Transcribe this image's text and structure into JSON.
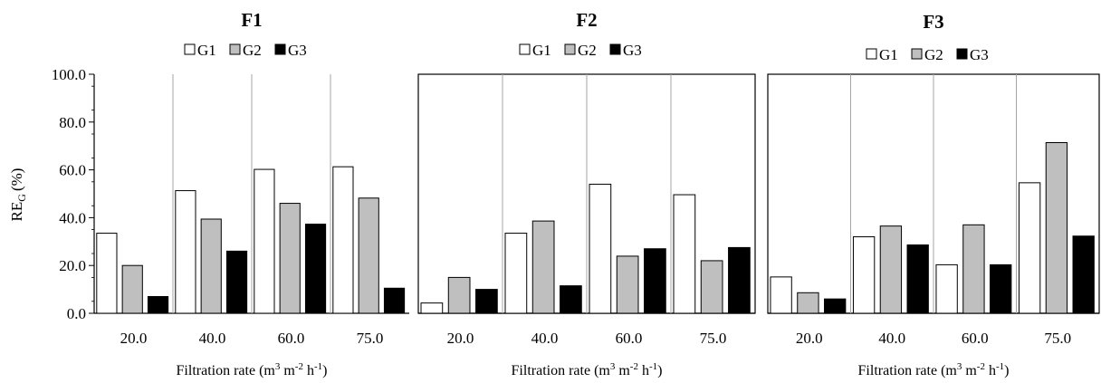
{
  "legend_labels": [
    "G1",
    "G2",
    "G3"
  ],
  "colors": {
    "G1": "#ffffff",
    "G2": "#bfbfbf",
    "G3": "#000000",
    "stroke": "#000000",
    "separator": "#a6a6a6"
  },
  "y_axis": {
    "label_main": "RE",
    "label_sub": "G",
    "label_unit": "(%)",
    "ticks": [
      "100.0",
      "80.0",
      "60.0",
      "40.0",
      "20.0",
      "0.0"
    ]
  },
  "x_axis": {
    "label_main": "Filtration  rate (m",
    "sup1": "3",
    "mid1": " m",
    "sup2": "-2",
    "mid2": " h",
    "sup3": "-1",
    "end": ")"
  },
  "chart_data": [
    {
      "type": "bar",
      "title": "F1",
      "categories": [
        "20.0",
        "40.0",
        "60.0",
        "75.0"
      ],
      "series": [
        {
          "name": "G1",
          "values": [
            33.5,
            51.3,
            60.2,
            61.3
          ]
        },
        {
          "name": "G2",
          "values": [
            20.0,
            39.4,
            46.0,
            48.2
          ]
        },
        {
          "name": "G3",
          "values": [
            7.0,
            26.0,
            37.3,
            10.5
          ]
        }
      ],
      "ylim": [
        0,
        100
      ],
      "grid": false,
      "legend": "top"
    },
    {
      "type": "bar",
      "title": "F2",
      "categories": [
        "20.0",
        "40.0",
        "60.0",
        "75.0"
      ],
      "series": [
        {
          "name": "G1",
          "values": [
            4.3,
            33.5,
            54.0,
            49.6
          ]
        },
        {
          "name": "G2",
          "values": [
            15.0,
            38.6,
            23.9,
            22.0
          ]
        },
        {
          "name": "G3",
          "values": [
            10.0,
            11.5,
            27.0,
            27.5
          ]
        }
      ],
      "ylim": [
        0,
        100
      ],
      "grid": false,
      "legend": "top"
    },
    {
      "type": "bar",
      "title": "F3",
      "categories": [
        "20.0",
        "40.0",
        "60.0",
        "75.0"
      ],
      "series": [
        {
          "name": "G1",
          "values": [
            15.2,
            32.0,
            20.3,
            54.6
          ]
        },
        {
          "name": "G2",
          "values": [
            8.6,
            36.5,
            37.0,
            71.4
          ]
        },
        {
          "name": "G3",
          "values": [
            6.0,
            28.6,
            20.3,
            32.3
          ]
        }
      ],
      "ylim": [
        0,
        100
      ],
      "grid": false,
      "legend": "top"
    }
  ]
}
